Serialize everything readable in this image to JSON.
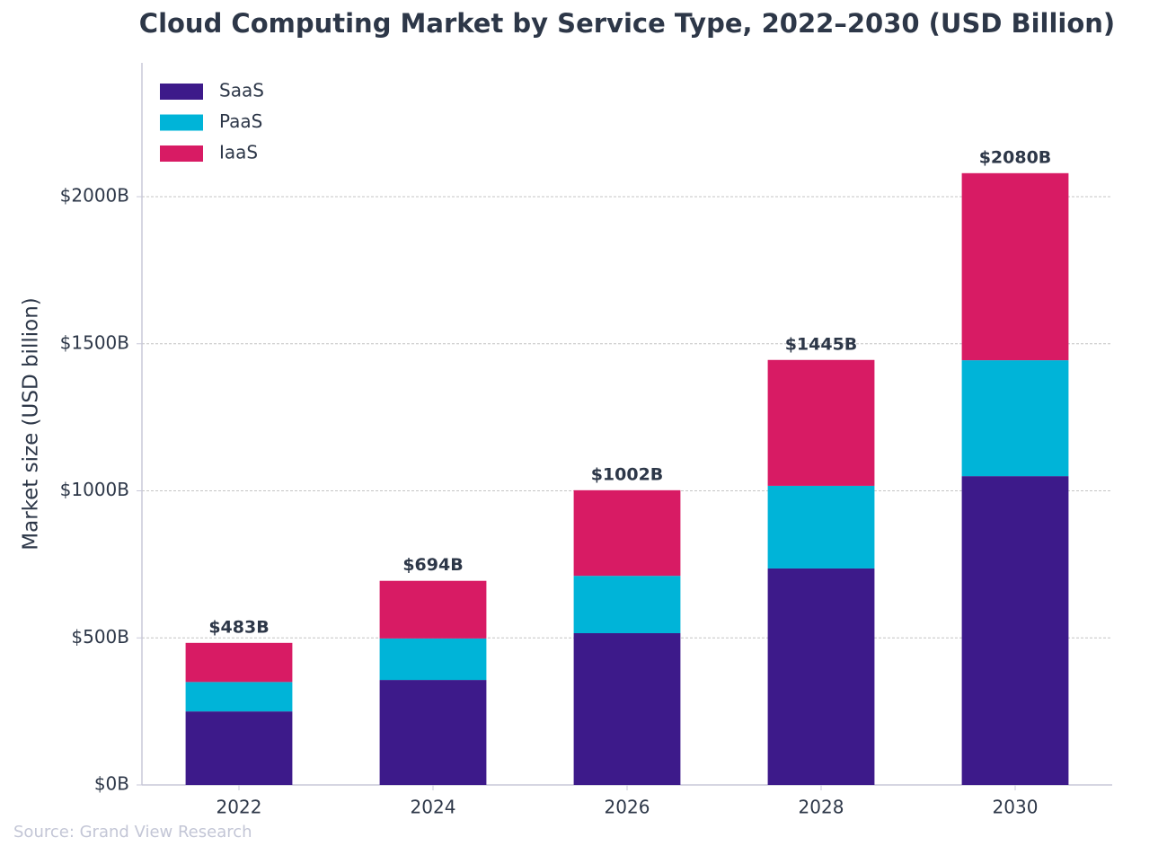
{
  "chart_data": {
    "type": "stacked_bar",
    "title": "Cloud Computing Market by Service Type, 2022–2030 (USD Billion)",
    "y_label": "Market size (USD billion)",
    "source": "Source: Grand View Research",
    "categories": [
      "2022",
      "2024",
      "2026",
      "2028",
      "2030"
    ],
    "series": [
      {
        "name": "SaaS",
        "color": "#3d1a8a",
        "values": [
          250,
          357,
          516,
          736,
          1050
        ]
      },
      {
        "name": "PaaS",
        "color": "#00b4d8",
        "values": [
          100,
          141,
          195,
          281,
          394
        ]
      },
      {
        "name": "IaaS",
        "color": "#d81b64",
        "values": [
          133,
          196,
          291,
          428,
          636
        ]
      }
    ],
    "totals": {
      "values": [
        483,
        694,
        1002,
        1445,
        2080
      ],
      "value_labels": [
        "$483B",
        "$694B",
        "$1002B",
        "$1445B",
        "$2080B"
      ]
    },
    "ylim": [
      0,
      2455
    ],
    "yticks": [
      {
        "value": 0,
        "label": "$0B"
      },
      {
        "value": 500,
        "label": "$500B"
      },
      {
        "value": 1000,
        "label": "$1000B"
      },
      {
        "value": 1500,
        "label": "$1500B"
      },
      {
        "value": 2000,
        "label": "$2000B"
      }
    ],
    "grid": true,
    "legend": "upper-left"
  }
}
